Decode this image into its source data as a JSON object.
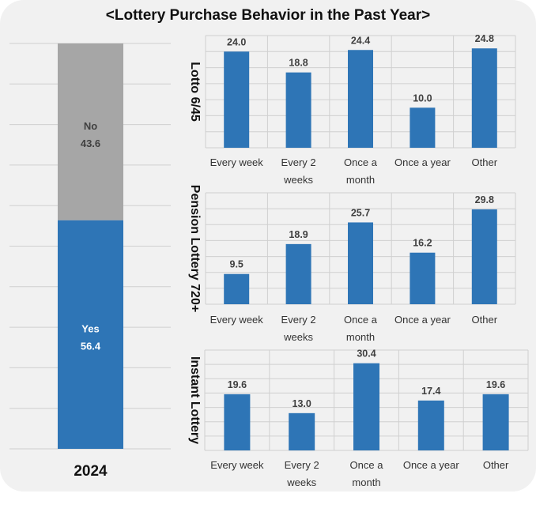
{
  "title": "<Lottery Purchase Behavior in the Past Year>",
  "colors": {
    "blue": "#2e75b6",
    "gray": "#a6a6a6",
    "grid": "#d0d0d0"
  },
  "chart_data": [
    {
      "type": "bar",
      "stacked": true,
      "categories": [
        "2024"
      ],
      "series": [
        {
          "name": "Yes",
          "values": [
            56.4
          ],
          "color": "#2e75b6"
        },
        {
          "name": "No",
          "values": [
            43.6
          ],
          "color": "#a6a6a6"
        }
      ],
      "ylim": [
        0,
        100
      ],
      "grid": true
    },
    {
      "type": "bar",
      "title": "Lotto 6/45",
      "categories": [
        "Every week",
        "Every 2 weeks",
        "Once a month",
        "Once a year",
        "Other"
      ],
      "values": [
        24.0,
        18.8,
        24.4,
        10.0,
        24.8
      ],
      "grid": true
    },
    {
      "type": "bar",
      "title": "Pension Lottery 720+",
      "categories": [
        "Every week",
        "Every 2 weeks",
        "Once a month",
        "Once a year",
        "Other"
      ],
      "values": [
        9.5,
        18.9,
        25.7,
        16.2,
        29.8
      ],
      "grid": true
    },
    {
      "type": "bar",
      "title": "Instant Lottery",
      "categories": [
        "Every week",
        "Every 2 weeks",
        "Once a month",
        "Once a year",
        "Other"
      ],
      "values": [
        19.6,
        13.0,
        30.4,
        17.4,
        19.6
      ],
      "grid": true
    }
  ]
}
